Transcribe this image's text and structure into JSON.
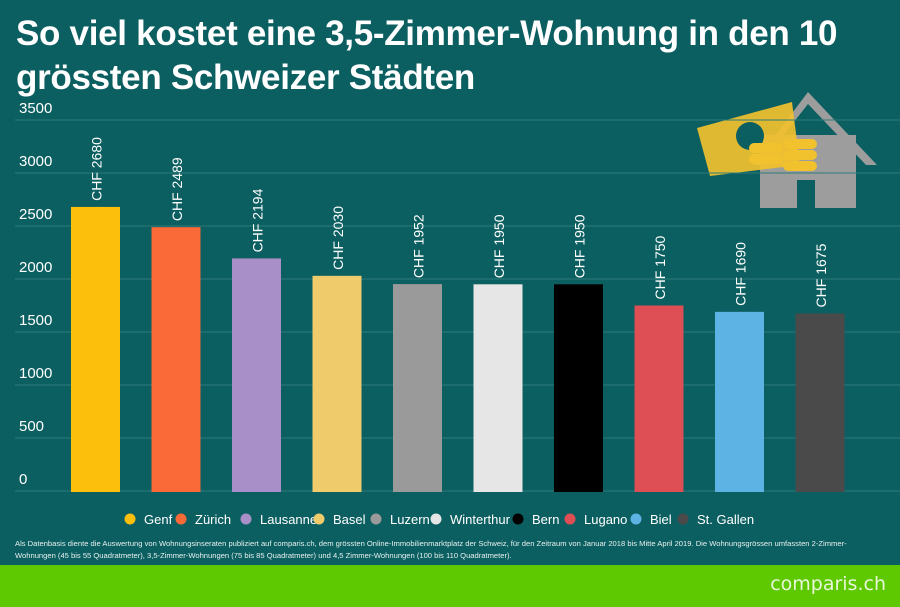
{
  "chart_data": {
    "type": "bar",
    "title": "So viel kostet eine 3,5-Zimmer-Wohnung in den 10 grössten Schweizer Städten",
    "categories": [
      "Genf",
      "Zürich",
      "Lausanne",
      "Basel",
      "Luzern",
      "Winterthur",
      "Bern",
      "Lugano",
      "Biel",
      "St. Gallen"
    ],
    "values": [
      2680,
      2489,
      2194,
      2030,
      1952,
      1950,
      1950,
      1750,
      1690,
      1675
    ],
    "data_labels": [
      "CHF 2680",
      "CHF 2489",
      "CHF 2194",
      "CHF 2030",
      "CHF 1952",
      "CHF 1950",
      "CHF 1950",
      "CHF 1750",
      "CHF 1690",
      "CHF 1675"
    ],
    "colors": [
      "#fbbf0c",
      "#f96a38",
      "#a98fc8",
      "#efcb6b",
      "#9a9a9a",
      "#e6e6e6",
      "#000000",
      "#dd4f55",
      "#5db3e4",
      "#4a4a4a"
    ],
    "yticks": [
      "0",
      "500",
      "1000",
      "1500",
      "2000",
      "2500",
      "3000",
      "3500"
    ],
    "ylim": [
      0,
      3500
    ],
    "grid": true,
    "legend_placement": "bottom",
    "xlabel": "",
    "ylabel": ""
  },
  "footnote": "Als Datenbasis diente die Auswertung von Wohnungsinseraten publiziert auf comparis.ch, dem grössten Online-Immobilienmarktplatz der Schweiz, für den Zeitraum von Januar 2018 bis Mitte April 2019. Die Wohnungsgrössen umfassten 2-Zimmer-Wohnungen (45 bis 55 Quadratmeter), 3,5-Zimmer-Wohnungen (75 bis 85 Quadratmeter) und 4,5 Zimmer-Wohnungen (100 bis 110 Quadratmeter).",
  "logo": "comparis.ch",
  "illustration_icon": "house-money-icon",
  "colors": {
    "background": "#0c5f61",
    "footer": "#5ec800"
  }
}
